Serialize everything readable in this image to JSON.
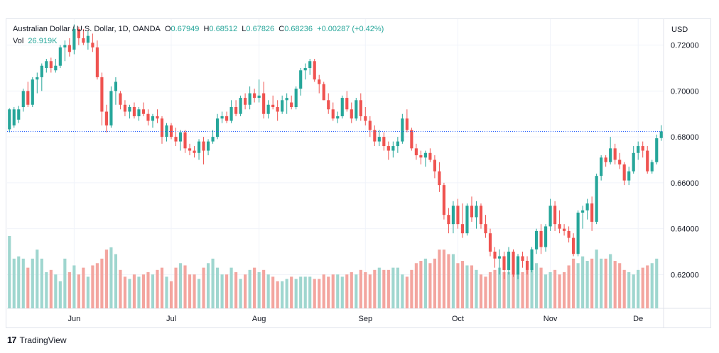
{
  "header": {
    "symbol": "Australian Dollar / U.S. Dollar, 1D, OANDA",
    "o_label": "O",
    "o_value": "0.67949",
    "h_label": "H",
    "h_value": "0.68512",
    "l_label": "L",
    "l_value": "0.67826",
    "c_label": "C",
    "c_value": "0.68236",
    "change": "+0.00287 (+0.42%)",
    "vol_label": "Vol",
    "vol_value": "26.919K"
  },
  "footer": {
    "brand": "TradingView"
  },
  "colors": {
    "up": "#26a69a",
    "down": "#ef5350",
    "up_vol": "#9fd6cf",
    "down_vol": "#f3a59f",
    "grid": "#f0f3fa",
    "text": "#131722",
    "price_line": "#2962ff"
  },
  "chart_data": {
    "type": "candlestick",
    "currency_label": "USD",
    "y_ticks": [
      "0.72000",
      "0.70000",
      "0.68000",
      "0.66000",
      "0.64000",
      "0.62000"
    ],
    "y_tick_values": [
      0.72,
      0.7,
      0.68,
      0.66,
      0.64,
      0.62
    ],
    "ylim": [
      0.6053,
      0.7313
    ],
    "x_labels": [
      "Jun",
      "Jul",
      "Aug",
      "Sep",
      "Oct",
      "Nov",
      "De"
    ],
    "x_label_index": [
      14,
      35,
      54,
      77,
      97,
      117,
      136
    ],
    "last_price": 0.68236,
    "grid": true,
    "candles": [
      [
        0.6833,
        0.6925,
        0.682,
        0.692
      ],
      [
        0.685,
        0.693,
        0.684,
        0.692
      ],
      [
        0.6875,
        0.6935,
        0.686,
        0.692
      ],
      [
        0.693,
        0.701,
        0.691,
        0.7
      ],
      [
        0.7,
        0.704,
        0.693,
        0.694
      ],
      [
        0.694,
        0.706,
        0.693,
        0.705
      ],
      [
        0.705,
        0.708,
        0.699,
        0.706
      ],
      [
        0.706,
        0.712,
        0.7,
        0.711
      ],
      [
        0.71,
        0.714,
        0.708,
        0.713
      ],
      [
        0.713,
        0.7145,
        0.708,
        0.71
      ],
      [
        0.709,
        0.714,
        0.708,
        0.711
      ],
      [
        0.711,
        0.72,
        0.71,
        0.719
      ],
      [
        0.719,
        0.722,
        0.713,
        0.72
      ],
      [
        0.72,
        0.723,
        0.715,
        0.717
      ],
      [
        0.718,
        0.729,
        0.716,
        0.727
      ],
      [
        0.727,
        0.728,
        0.72,
        0.723
      ],
      [
        0.723,
        0.727,
        0.72,
        0.721
      ],
      [
        0.721,
        0.726,
        0.718,
        0.724
      ],
      [
        0.721,
        0.725,
        0.717,
        0.719
      ],
      [
        0.719,
        0.722,
        0.705,
        0.706
      ],
      [
        0.706,
        0.708,
        0.685,
        0.691
      ],
      [
        0.691,
        0.694,
        0.682,
        0.685
      ],
      [
        0.685,
        0.702,
        0.684,
        0.7
      ],
      [
        0.7,
        0.706,
        0.694,
        0.704
      ],
      [
        0.699,
        0.7,
        0.692,
        0.694
      ],
      [
        0.694,
        0.696,
        0.689,
        0.691
      ],
      [
        0.691,
        0.694,
        0.688,
        0.693
      ],
      [
        0.693,
        0.695,
        0.688,
        0.689
      ],
      [
        0.689,
        0.693,
        0.687,
        0.692
      ],
      [
        0.692,
        0.695,
        0.689,
        0.69
      ],
      [
        0.69,
        0.692,
        0.685,
        0.687
      ],
      [
        0.687,
        0.69,
        0.684,
        0.689
      ],
      [
        0.689,
        0.692,
        0.686,
        0.688
      ],
      [
        0.688,
        0.689,
        0.677,
        0.68
      ],
      [
        0.68,
        0.686,
        0.678,
        0.685
      ],
      [
        0.685,
        0.686,
        0.679,
        0.68
      ],
      [
        0.68,
        0.684,
        0.676,
        0.678
      ],
      [
        0.678,
        0.683,
        0.674,
        0.682
      ],
      [
        0.682,
        0.683,
        0.673,
        0.675
      ],
      [
        0.675,
        0.677,
        0.672,
        0.674
      ],
      [
        0.674,
        0.676,
        0.671,
        0.673
      ],
      [
        0.673,
        0.679,
        0.67,
        0.678
      ],
      [
        0.678,
        0.68,
        0.668,
        0.674
      ],
      [
        0.674,
        0.679,
        0.672,
        0.678
      ],
      [
        0.678,
        0.683,
        0.677,
        0.68
      ],
      [
        0.68,
        0.69,
        0.679,
        0.688
      ],
      [
        0.688,
        0.691,
        0.686,
        0.689
      ],
      [
        0.689,
        0.691,
        0.686,
        0.687
      ],
      [
        0.687,
        0.696,
        0.686,
        0.693
      ],
      [
        0.693,
        0.696,
        0.689,
        0.69
      ],
      [
        0.69,
        0.698,
        0.689,
        0.697
      ],
      [
        0.697,
        0.699,
        0.692,
        0.694
      ],
      [
        0.694,
        0.702,
        0.692,
        0.699
      ],
      [
        0.699,
        0.701,
        0.695,
        0.697
      ],
      [
        0.697,
        0.705,
        0.695,
        0.698
      ],
      [
        0.699,
        0.704,
        0.688,
        0.69
      ],
      [
        0.69,
        0.696,
        0.688,
        0.694
      ],
      [
        0.694,
        0.698,
        0.692,
        0.693
      ],
      [
        0.693,
        0.696,
        0.687,
        0.691
      ],
      [
        0.691,
        0.698,
        0.69,
        0.696
      ],
      [
        0.696,
        0.699,
        0.69,
        0.697
      ],
      [
        0.695,
        0.698,
        0.692,
        0.693
      ],
      [
        0.693,
        0.702,
        0.692,
        0.701
      ],
      [
        0.701,
        0.71,
        0.698,
        0.709
      ],
      [
        0.709,
        0.712,
        0.705,
        0.71
      ],
      [
        0.71,
        0.714,
        0.707,
        0.713
      ],
      [
        0.713,
        0.714,
        0.704,
        0.705
      ],
      [
        0.705,
        0.707,
        0.699,
        0.703
      ],
      [
        0.703,
        0.704,
        0.696,
        0.696
      ],
      [
        0.696,
        0.699,
        0.69,
        0.692
      ],
      [
        0.692,
        0.695,
        0.687,
        0.688
      ],
      [
        0.688,
        0.691,
        0.686,
        0.689
      ],
      [
        0.689,
        0.698,
        0.688,
        0.697
      ],
      [
        0.697,
        0.7,
        0.691,
        0.692
      ],
      [
        0.692,
        0.695,
        0.686,
        0.688
      ],
      [
        0.688,
        0.697,
        0.687,
        0.696
      ],
      [
        0.696,
        0.699,
        0.687,
        0.689
      ],
      [
        0.689,
        0.693,
        0.685,
        0.687
      ],
      [
        0.687,
        0.689,
        0.68,
        0.683
      ],
      [
        0.683,
        0.685,
        0.676,
        0.678
      ],
      [
        0.678,
        0.683,
        0.676,
        0.68
      ],
      [
        0.68,
        0.682,
        0.674,
        0.676
      ],
      [
        0.676,
        0.678,
        0.67,
        0.674
      ],
      [
        0.674,
        0.678,
        0.671,
        0.676
      ],
      [
        0.676,
        0.68,
        0.673,
        0.678
      ],
      [
        0.678,
        0.69,
        0.677,
        0.688
      ],
      [
        0.688,
        0.692,
        0.682,
        0.683
      ],
      [
        0.683,
        0.684,
        0.674,
        0.675
      ],
      [
        0.675,
        0.677,
        0.67,
        0.672
      ],
      [
        0.672,
        0.674,
        0.668,
        0.671
      ],
      [
        0.671,
        0.674,
        0.667,
        0.673
      ],
      [
        0.673,
        0.675,
        0.669,
        0.67
      ],
      [
        0.67,
        0.672,
        0.662,
        0.665
      ],
      [
        0.665,
        0.669,
        0.656,
        0.659
      ],
      [
        0.659,
        0.66,
        0.644,
        0.646
      ],
      [
        0.646,
        0.649,
        0.638,
        0.642
      ],
      [
        0.642,
        0.652,
        0.638,
        0.65
      ],
      [
        0.65,
        0.653,
        0.64,
        0.642
      ],
      [
        0.642,
        0.651,
        0.636,
        0.638
      ],
      [
        0.638,
        0.651,
        0.637,
        0.65
      ],
      [
        0.65,
        0.654,
        0.643,
        0.645
      ],
      [
        0.645,
        0.652,
        0.64,
        0.65
      ],
      [
        0.65,
        0.651,
        0.64,
        0.642
      ],
      [
        0.642,
        0.646,
        0.636,
        0.638
      ],
      [
        0.638,
        0.64,
        0.628,
        0.63
      ],
      [
        0.63,
        0.632,
        0.623,
        0.627
      ],
      [
        0.627,
        0.631,
        0.62,
        0.628
      ],
      [
        0.628,
        0.63,
        0.618,
        0.622
      ],
      [
        0.622,
        0.632,
        0.62,
        0.63
      ],
      [
        0.63,
        0.631,
        0.619,
        0.62
      ],
      [
        0.62,
        0.629,
        0.618,
        0.628
      ],
      [
        0.628,
        0.63,
        0.623,
        0.626
      ],
      [
        0.626,
        0.628,
        0.62,
        0.622
      ],
      [
        0.622,
        0.632,
        0.621,
        0.631
      ],
      [
        0.631,
        0.64,
        0.629,
        0.639
      ],
      [
        0.639,
        0.642,
        0.629,
        0.632
      ],
      [
        0.632,
        0.642,
        0.63,
        0.641
      ],
      [
        0.641,
        0.653,
        0.639,
        0.65
      ],
      [
        0.65,
        0.652,
        0.639,
        0.642
      ],
      [
        0.642,
        0.648,
        0.638,
        0.64
      ],
      [
        0.64,
        0.642,
        0.637,
        0.639
      ],
      [
        0.639,
        0.641,
        0.634,
        0.636
      ],
      [
        0.636,
        0.638,
        0.628,
        0.629
      ],
      [
        0.629,
        0.648,
        0.628,
        0.647
      ],
      [
        0.647,
        0.65,
        0.64,
        0.648
      ],
      [
        0.648,
        0.653,
        0.644,
        0.651
      ],
      [
        0.651,
        0.654,
        0.639,
        0.643
      ],
      [
        0.643,
        0.664,
        0.642,
        0.663
      ],
      [
        0.663,
        0.672,
        0.661,
        0.671
      ],
      [
        0.671,
        0.672,
        0.667,
        0.669
      ],
      [
        0.669,
        0.68,
        0.668,
        0.675
      ],
      [
        0.675,
        0.677,
        0.668,
        0.67
      ],
      [
        0.67,
        0.673,
        0.666,
        0.668
      ],
      [
        0.668,
        0.669,
        0.659,
        0.661
      ],
      [
        0.661,
        0.667,
        0.659,
        0.665
      ],
      [
        0.665,
        0.676,
        0.664,
        0.673
      ],
      [
        0.673,
        0.678,
        0.67,
        0.676
      ],
      [
        0.676,
        0.678,
        0.671,
        0.674
      ],
      [
        0.674,
        0.676,
        0.664,
        0.665
      ],
      [
        0.665,
        0.67,
        0.664,
        0.669
      ],
      [
        0.669,
        0.681,
        0.668,
        0.6794
      ],
      [
        0.6795,
        0.6851,
        0.6783,
        0.6824
      ]
    ],
    "volume": [
      32,
      22,
      23,
      22,
      18,
      22,
      26,
      22,
      16,
      17,
      15,
      12,
      22,
      16,
      19,
      15,
      18,
      14,
      19,
      20,
      22,
      26,
      27,
      24,
      17,
      14,
      13,
      15,
      14,
      15,
      16,
      15,
      17,
      18,
      14,
      12,
      18,
      20,
      19,
      15,
      15,
      13,
      18,
      20,
      22,
      18,
      15,
      15,
      18,
      16,
      13,
      15,
      17,
      18,
      16,
      17,
      15,
      14,
      12,
      12,
      13,
      14,
      13,
      14,
      14,
      14,
      13,
      13,
      15,
      14,
      15,
      15,
      14,
      15,
      16,
      15,
      17,
      16,
      15,
      17,
      18,
      17,
      17,
      18,
      18,
      15,
      14,
      17,
      20,
      21,
      22,
      20,
      22,
      26,
      26,
      24,
      24,
      20,
      21,
      19,
      19,
      17,
      15,
      14,
      16,
      17,
      18,
      16,
      16,
      15,
      16,
      16,
      17,
      18,
      20,
      18,
      15,
      16,
      17,
      15,
      16,
      19,
      22,
      20,
      23,
      21,
      22,
      26,
      22,
      22,
      24,
      21,
      20,
      17,
      16,
      15,
      17,
      18,
      19,
      20,
      22
    ]
  }
}
